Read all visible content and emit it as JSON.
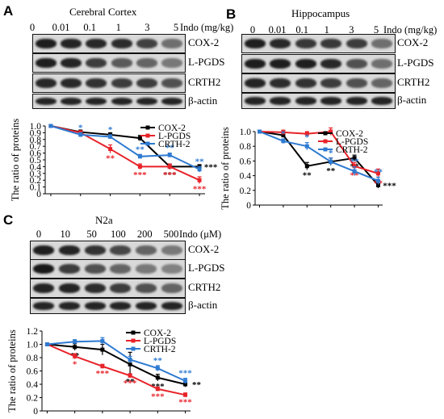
{
  "panels": [
    {
      "letter": "A",
      "title": "Cerebral Cortex",
      "doses": [
        "0",
        "0.01",
        "0.1",
        "1",
        "3",
        "5"
      ],
      "dose_unit": "Indo (mg/kg)",
      "blot_labels": [
        "COX-2",
        "L-PGDS",
        "CRTH2",
        "β-actin"
      ],
      "band_intensity": [
        [
          0.95,
          0.92,
          0.9,
          0.88,
          0.78,
          0.55
        ],
        [
          0.95,
          0.92,
          0.8,
          0.65,
          0.6,
          0.5
        ],
        [
          0.9,
          0.9,
          0.85,
          0.8,
          0.8,
          0.7
        ],
        [
          0.92,
          0.92,
          0.92,
          0.92,
          0.92,
          0.92
        ]
      ]
    },
    {
      "letter": "B",
      "title": "Hippocampus",
      "doses": [
        "0",
        "0.01",
        "0.1",
        "1",
        "3",
        "5"
      ],
      "dose_unit": "Indo (mg/kg)",
      "blot_labels": [
        "COX-2",
        "L-PGDS",
        "CRTH2",
        "β-actin"
      ],
      "band_intensity": [
        [
          0.95,
          0.9,
          0.82,
          0.82,
          0.8,
          0.55
        ],
        [
          0.95,
          0.95,
          0.95,
          0.9,
          0.7,
          0.55
        ],
        [
          0.92,
          0.88,
          0.85,
          0.8,
          0.7,
          0.6
        ],
        [
          0.92,
          0.92,
          0.92,
          0.92,
          0.92,
          0.92
        ]
      ]
    },
    {
      "letter": "C",
      "title": "N2a",
      "doses": [
        "0",
        "10",
        "50",
        "100",
        "200",
        "500"
      ],
      "dose_unit": "Indo (μM)",
      "blot_labels": [
        "COX-2",
        "L-PGDS",
        "CRTH2",
        "β-actin"
      ],
      "band_intensity": [
        [
          0.95,
          0.92,
          0.85,
          0.75,
          0.6,
          0.5
        ],
        [
          0.98,
          0.8,
          0.7,
          0.6,
          0.5,
          0.45
        ],
        [
          0.92,
          0.92,
          0.88,
          0.8,
          0.7,
          0.6
        ],
        [
          0.92,
          0.92,
          0.92,
          0.92,
          0.92,
          0.92
        ]
      ]
    }
  ],
  "chart_data": [
    {
      "type": "line",
      "panel": "A",
      "title": "",
      "xlabel": "",
      "ylabel": "The ratio of proteins",
      "ylim": [
        0,
        1.0
      ],
      "yticks": [
        "0",
        "0.1",
        "0.2",
        "0.3",
        "0.4",
        "0.5",
        "0.6",
        "0.7",
        "0.8",
        "0.9",
        "1.0"
      ],
      "categories": [
        "0",
        "0.01",
        "0.1",
        "1",
        "3",
        "5"
      ],
      "grid": false,
      "legend": "top-right",
      "series": [
        {
          "name": "COX-2",
          "color": "#000000",
          "values": [
            1.0,
            0.91,
            0.87,
            0.82,
            0.4,
            0.4
          ],
          "errors": [
            0,
            0.03,
            0.03,
            0.04,
            0.04,
            0.03
          ],
          "stars": [
            "",
            "",
            "",
            "",
            "***",
            "***"
          ]
        },
        {
          "name": "L-PGDS",
          "color": "#e8232a",
          "values": [
            1.0,
            0.9,
            0.66,
            0.4,
            0.4,
            0.2
          ],
          "errors": [
            0,
            0.03,
            0.06,
            0.04,
            0.04,
            0.05
          ],
          "stars": [
            "",
            "",
            "**",
            "***",
            "***",
            "***"
          ]
        },
        {
          "name": "CRTH-2",
          "color": "#2e7ad1",
          "values": [
            1.0,
            0.87,
            0.84,
            0.55,
            0.57,
            0.36
          ],
          "errors": [
            0,
            0.03,
            0.03,
            0.03,
            0.03,
            0.04
          ],
          "stars": [
            "",
            "*",
            "*",
            "**",
            "**",
            "**"
          ]
        }
      ]
    },
    {
      "type": "line",
      "panel": "B",
      "title": "",
      "xlabel": "",
      "ylabel": "The ratio of proteins",
      "ylim": [
        0,
        1.0
      ],
      "yticks": [
        "0",
        "0.2",
        "0.4",
        "0.6",
        "0.8",
        "1.0"
      ],
      "categories": [
        "0",
        "0.01",
        "0.1",
        "1",
        "3",
        "5"
      ],
      "grid": false,
      "legend": "top-right",
      "series": [
        {
          "name": "COX-2",
          "color": "#000000",
          "values": [
            1.0,
            0.95,
            0.53,
            0.59,
            0.64,
            0.27
          ],
          "errors": [
            0,
            0.03,
            0.05,
            0.05,
            0.04,
            0.04
          ],
          "stars": [
            "",
            "",
            "**",
            "**",
            "**",
            "***"
          ]
        },
        {
          "name": "L-PGDS",
          "color": "#e8232a",
          "values": [
            1.0,
            0.99,
            0.97,
            1.0,
            0.53,
            0.43
          ],
          "errors": [
            0,
            0.03,
            0.03,
            0.05,
            0.05,
            0.06
          ],
          "stars": [
            "",
            "",
            "",
            "",
            "**",
            "**"
          ]
        },
        {
          "name": "CRTH-2",
          "color": "#2e7ad1",
          "values": [
            1.0,
            0.87,
            0.8,
            0.59,
            0.46,
            0.33
          ],
          "errors": [
            0,
            0.03,
            0.05,
            0.05,
            0.06,
            0.05
          ],
          "stars": [
            "",
            "*",
            "*",
            "*",
            "**",
            "**"
          ]
        }
      ]
    },
    {
      "type": "line",
      "panel": "C",
      "title": "",
      "xlabel": "",
      "ylabel": "The ratio of proteins",
      "ylim": [
        0,
        1.2
      ],
      "yticks": [
        "0",
        "0.2",
        "0.4",
        "0.6",
        "0.8",
        "1.0",
        "1.2"
      ],
      "categories": [
        "0",
        "10",
        "50",
        "100",
        "200",
        "500"
      ],
      "grid": false,
      "legend": "top-right",
      "series": [
        {
          "name": "COX-2",
          "color": "#000000",
          "values": [
            1.0,
            0.96,
            0.92,
            0.7,
            0.5,
            0.4
          ],
          "errors": [
            0,
            0.05,
            0.08,
            0.18,
            0.05,
            0.04
          ],
          "stars": [
            "",
            "**",
            "",
            "**",
            "***",
            "**"
          ]
        },
        {
          "name": "L-PGDS",
          "color": "#e8232a",
          "values": [
            1.0,
            0.82,
            0.67,
            0.53,
            0.33,
            0.24
          ],
          "errors": [
            0,
            0.04,
            0.03,
            0.03,
            0.03,
            0.03
          ],
          "stars": [
            "",
            "*",
            "***",
            "***",
            "***",
            "***"
          ]
        },
        {
          "name": "CRTH-2",
          "color": "#2e7ad1",
          "values": [
            1.0,
            1.04,
            1.05,
            0.77,
            0.64,
            0.45
          ],
          "errors": [
            0,
            0.03,
            0.05,
            0.05,
            0.04,
            0.04
          ],
          "stars": [
            "",
            "",
            "",
            "",
            "**",
            "***"
          ]
        }
      ]
    }
  ]
}
